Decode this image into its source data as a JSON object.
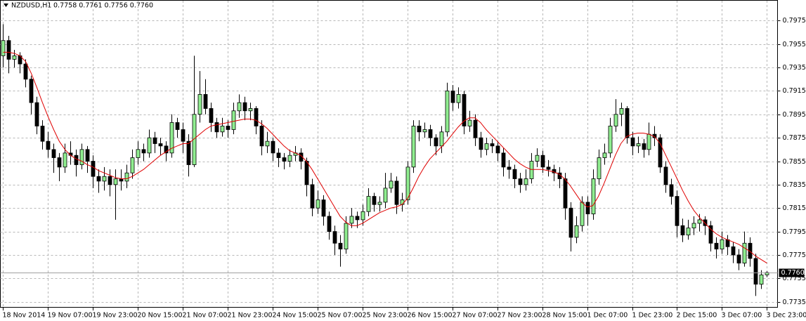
{
  "chart_data": {
    "type": "candlestick",
    "symbol": "NZDUSD,H1",
    "header_ohlc": "0.7758 0.7761 0.7756 0.7760",
    "bull_color": "#90ee90",
    "bear_color": "#000000",
    "grid": true,
    "ylim": [
      0.773,
      0.7992
    ],
    "yticks": [
      0.7975,
      0.7955,
      0.7935,
      0.7915,
      0.7895,
      0.7875,
      0.7855,
      0.7835,
      0.7815,
      0.7795,
      0.7775,
      0.7755,
      0.7735
    ],
    "xlim": [
      -0.5,
      137.9
    ],
    "xticks": [
      {
        "value": 0,
        "label": "18 Nov 2014"
      },
      {
        "value": 8,
        "label": "19 Nov 07:00"
      },
      {
        "value": 16,
        "label": "19 Nov 23:00"
      },
      {
        "value": 24,
        "label": "20 Nov 15:00"
      },
      {
        "value": 32,
        "label": "21 Nov 07:00"
      },
      {
        "value": 40,
        "label": "21 Nov 23:00"
      },
      {
        "value": 48,
        "label": "24 Nov 15:00"
      },
      {
        "value": 56,
        "label": "25 Nov 07:00"
      },
      {
        "value": 64,
        "label": "25 Nov 23:00"
      },
      {
        "value": 72,
        "label": "26 Nov 15:00"
      },
      {
        "value": 80,
        "label": "27 Nov 07:00"
      },
      {
        "value": 88,
        "label": "27 Nov 23:00"
      },
      {
        "value": 96,
        "label": "28 Nov 15:00"
      },
      {
        "value": 104,
        "label": "1 Dec 07:00"
      },
      {
        "value": 112,
        "label": "1 Dec 23:00"
      },
      {
        "value": 120,
        "label": "2 Dec 15:00"
      },
      {
        "value": 128,
        "label": "3 Dec 07:00"
      },
      {
        "value": 136,
        "label": "3 Dec 23:00"
      }
    ],
    "last_price": {
      "value": 0.776,
      "label": "0.7760"
    },
    "candles": [
      [
        0.7945,
        0.7972,
        0.7935,
        0.7958
      ],
      [
        0.7958,
        0.7962,
        0.793,
        0.7942
      ],
      [
        0.7942,
        0.795,
        0.7935,
        0.7945
      ],
      [
        0.7945,
        0.7948,
        0.793,
        0.7938
      ],
      [
        0.7938,
        0.7942,
        0.7918,
        0.7925
      ],
      [
        0.7925,
        0.7928,
        0.7895,
        0.7905
      ],
      [
        0.7905,
        0.791,
        0.7878,
        0.7885
      ],
      [
        0.7885,
        0.789,
        0.7865,
        0.7872
      ],
      [
        0.7872,
        0.788,
        0.7858,
        0.7865
      ],
      [
        0.7865,
        0.787,
        0.7845,
        0.7858
      ],
      [
        0.7858,
        0.7862,
        0.7838,
        0.785
      ],
      [
        0.785,
        0.787,
        0.7845,
        0.7862
      ],
      [
        0.7862,
        0.7872,
        0.7852,
        0.786
      ],
      [
        0.786,
        0.7865,
        0.7842,
        0.7852
      ],
      [
        0.7852,
        0.787,
        0.7848,
        0.7865
      ],
      [
        0.7865,
        0.7868,
        0.7845,
        0.7855
      ],
      [
        0.7855,
        0.786,
        0.7832,
        0.7842
      ],
      [
        0.7842,
        0.7848,
        0.7828,
        0.7838
      ],
      [
        0.7838,
        0.785,
        0.783,
        0.7842
      ],
      [
        0.7842,
        0.7848,
        0.7825,
        0.7835
      ],
      [
        0.7835,
        0.7848,
        0.7805,
        0.784
      ],
      [
        0.784,
        0.7848,
        0.783,
        0.7838
      ],
      [
        0.7838,
        0.7852,
        0.7832,
        0.7845
      ],
      [
        0.7845,
        0.7865,
        0.784,
        0.7858
      ],
      [
        0.7858,
        0.7872,
        0.7852,
        0.7865
      ],
      [
        0.7865,
        0.787,
        0.7855,
        0.7862
      ],
      [
        0.7862,
        0.7882,
        0.7858,
        0.7875
      ],
      [
        0.7875,
        0.788,
        0.7862,
        0.787
      ],
      [
        0.787,
        0.7875,
        0.786,
        0.7868
      ],
      [
        0.7868,
        0.7872,
        0.7855,
        0.7862
      ],
      [
        0.7862,
        0.7895,
        0.7858,
        0.7888
      ],
      [
        0.7888,
        0.7892,
        0.7875,
        0.7882
      ],
      [
        0.7882,
        0.7888,
        0.7862,
        0.7872
      ],
      [
        0.7872,
        0.7878,
        0.7842,
        0.7852
      ],
      [
        0.7852,
        0.7945,
        0.785,
        0.7895
      ],
      [
        0.7895,
        0.7932,
        0.7888,
        0.7912
      ],
      [
        0.7912,
        0.7925,
        0.7895,
        0.79
      ],
      [
        0.79,
        0.7905,
        0.788,
        0.7888
      ],
      [
        0.7888,
        0.7892,
        0.7875,
        0.788
      ],
      [
        0.788,
        0.7892,
        0.7876,
        0.7885
      ],
      [
        0.7885,
        0.789,
        0.7875,
        0.7882
      ],
      [
        0.7882,
        0.7905,
        0.7878,
        0.7898
      ],
      [
        0.7898,
        0.7912,
        0.7892,
        0.7905
      ],
      [
        0.7905,
        0.791,
        0.789,
        0.7898
      ],
      [
        0.7898,
        0.7905,
        0.789,
        0.79
      ],
      [
        0.79,
        0.7902,
        0.7878,
        0.7885
      ],
      [
        0.7885,
        0.789,
        0.786,
        0.7868
      ],
      [
        0.7868,
        0.788,
        0.7862,
        0.7872
      ],
      [
        0.7872,
        0.7875,
        0.7855,
        0.7862
      ],
      [
        0.7862,
        0.7866,
        0.785,
        0.7858
      ],
      [
        0.7858,
        0.7862,
        0.7848,
        0.7855
      ],
      [
        0.7855,
        0.7865,
        0.785,
        0.786
      ],
      [
        0.786,
        0.7868,
        0.7855,
        0.7862
      ],
      [
        0.7862,
        0.7866,
        0.7848,
        0.7855
      ],
      [
        0.7855,
        0.7858,
        0.7825,
        0.7835
      ],
      [
        0.7835,
        0.784,
        0.7808,
        0.7815
      ],
      [
        0.7815,
        0.783,
        0.781,
        0.7822
      ],
      [
        0.7822,
        0.7826,
        0.78,
        0.7808
      ],
      [
        0.7808,
        0.7812,
        0.7788,
        0.7795
      ],
      [
        0.7795,
        0.78,
        0.7775,
        0.7785
      ],
      [
        0.7785,
        0.7792,
        0.7765,
        0.778
      ],
      [
        0.778,
        0.7808,
        0.7776,
        0.7802
      ],
      [
        0.7802,
        0.7815,
        0.7798,
        0.7808
      ],
      [
        0.7808,
        0.7812,
        0.7798,
        0.7805
      ],
      [
        0.7805,
        0.7818,
        0.78,
        0.7812
      ],
      [
        0.7812,
        0.7832,
        0.7808,
        0.7825
      ],
      [
        0.7825,
        0.7828,
        0.7812,
        0.7818
      ],
      [
        0.7818,
        0.7825,
        0.7812,
        0.782
      ],
      [
        0.782,
        0.7845,
        0.7815,
        0.7832
      ],
      [
        0.7832,
        0.7845,
        0.7828,
        0.7838
      ],
      [
        0.7838,
        0.7842,
        0.781,
        0.7818
      ],
      [
        0.7818,
        0.7828,
        0.7812,
        0.7822
      ],
      [
        0.7822,
        0.7855,
        0.7818,
        0.785
      ],
      [
        0.785,
        0.789,
        0.7845,
        0.7885
      ],
      [
        0.7885,
        0.789,
        0.7872,
        0.788
      ],
      [
        0.788,
        0.7888,
        0.7875,
        0.7882
      ],
      [
        0.7882,
        0.7886,
        0.7868,
        0.7875
      ],
      [
        0.7875,
        0.7878,
        0.786,
        0.7868
      ],
      [
        0.7868,
        0.7885,
        0.7862,
        0.788
      ],
      [
        0.788,
        0.7922,
        0.7876,
        0.7915
      ],
      [
        0.7915,
        0.792,
        0.7898,
        0.7905
      ],
      [
        0.7905,
        0.7918,
        0.79,
        0.7912
      ],
      [
        0.7912,
        0.7915,
        0.7878,
        0.7885
      ],
      [
        0.7885,
        0.7898,
        0.788,
        0.789
      ],
      [
        0.789,
        0.7895,
        0.7868,
        0.7875
      ],
      [
        0.7875,
        0.788,
        0.7858,
        0.7865
      ],
      [
        0.7865,
        0.7875,
        0.786,
        0.787
      ],
      [
        0.787,
        0.7874,
        0.7862,
        0.7868
      ],
      [
        0.7868,
        0.7872,
        0.7855,
        0.7862
      ],
      [
        0.7862,
        0.7866,
        0.7842,
        0.785
      ],
      [
        0.785,
        0.7856,
        0.784,
        0.7848
      ],
      [
        0.7848,
        0.7852,
        0.7832,
        0.784
      ],
      [
        0.784,
        0.7845,
        0.7828,
        0.7835
      ],
      [
        0.7835,
        0.7848,
        0.783,
        0.784
      ],
      [
        0.784,
        0.7862,
        0.7836,
        0.7855
      ],
      [
        0.7855,
        0.7866,
        0.785,
        0.786
      ],
      [
        0.786,
        0.7864,
        0.7845,
        0.785
      ],
      [
        0.785,
        0.7856,
        0.7842,
        0.7848
      ],
      [
        0.7848,
        0.7852,
        0.7838,
        0.7845
      ],
      [
        0.7845,
        0.785,
        0.7832,
        0.784
      ],
      [
        0.784,
        0.7845,
        0.7805,
        0.7815
      ],
      [
        0.7815,
        0.782,
        0.7778,
        0.779
      ],
      [
        0.779,
        0.7808,
        0.7785,
        0.78
      ],
      [
        0.78,
        0.7825,
        0.7795,
        0.782
      ],
      [
        0.782,
        0.7825,
        0.78,
        0.781
      ],
      [
        0.781,
        0.7848,
        0.7805,
        0.784
      ],
      [
        0.784,
        0.7865,
        0.7835,
        0.7858
      ],
      [
        0.7858,
        0.787,
        0.7852,
        0.7862
      ],
      [
        0.7862,
        0.7892,
        0.7858,
        0.7885
      ],
      [
        0.7885,
        0.7908,
        0.788,
        0.7895
      ],
      [
        0.7895,
        0.7905,
        0.7885,
        0.79
      ],
      [
        0.79,
        0.7902,
        0.787,
        0.7875
      ],
      [
        0.7875,
        0.788,
        0.786,
        0.7868
      ],
      [
        0.7868,
        0.7876,
        0.7862,
        0.787
      ],
      [
        0.787,
        0.7874,
        0.7858,
        0.7865
      ],
      [
        0.7865,
        0.7888,
        0.786,
        0.7878
      ],
      [
        0.7878,
        0.7885,
        0.7868,
        0.7875
      ],
      [
        0.7875,
        0.7878,
        0.7845,
        0.785
      ],
      [
        0.785,
        0.7855,
        0.7828,
        0.7835
      ],
      [
        0.7835,
        0.784,
        0.7818,
        0.7825
      ],
      [
        0.7825,
        0.783,
        0.779,
        0.78
      ],
      [
        0.78,
        0.7806,
        0.7786,
        0.7792
      ],
      [
        0.7792,
        0.7805,
        0.7788,
        0.7798
      ],
      [
        0.7798,
        0.7808,
        0.7792,
        0.7802
      ],
      [
        0.7802,
        0.781,
        0.7795,
        0.7805
      ],
      [
        0.7805,
        0.7808,
        0.7792,
        0.78
      ],
      [
        0.78,
        0.7804,
        0.7778,
        0.7785
      ],
      [
        0.7785,
        0.779,
        0.7772,
        0.778
      ],
      [
        0.778,
        0.7795,
        0.7776,
        0.7788
      ],
      [
        0.7788,
        0.7792,
        0.7775,
        0.7782
      ],
      [
        0.7782,
        0.7786,
        0.7768,
        0.7775
      ],
      [
        0.7775,
        0.778,
        0.7762,
        0.7768
      ],
      [
        0.7768,
        0.7795,
        0.7765,
        0.7785
      ],
      [
        0.7785,
        0.779,
        0.7765,
        0.7772
      ],
      [
        0.7772,
        0.7776,
        0.774,
        0.775
      ],
      [
        0.775,
        0.7762,
        0.7746,
        0.7758
      ],
      [
        0.7758,
        0.7761,
        0.7756,
        0.776
      ]
    ],
    "ma": {
      "color": "#e00000",
      "values": [
        0.7948,
        0.7948,
        0.7947,
        0.7945,
        0.794,
        0.793,
        0.7918,
        0.7905,
        0.7893,
        0.7882,
        0.7872,
        0.7865,
        0.786,
        0.7857,
        0.7855,
        0.7852,
        0.785,
        0.7847,
        0.7845,
        0.7843,
        0.7841,
        0.784,
        0.784,
        0.7842,
        0.7845,
        0.7848,
        0.7852,
        0.7856,
        0.786,
        0.7863,
        0.7866,
        0.7868,
        0.787,
        0.787,
        0.7874,
        0.7878,
        0.7882,
        0.7885,
        0.7886,
        0.7887,
        0.7888,
        0.7889,
        0.789,
        0.7891,
        0.7891,
        0.789,
        0.7887,
        0.7883,
        0.7878,
        0.7873,
        0.7868,
        0.7864,
        0.7862,
        0.786,
        0.7855,
        0.7848,
        0.784,
        0.7832,
        0.7824,
        0.7816,
        0.7808,
        0.7803,
        0.78,
        0.78,
        0.7802,
        0.7805,
        0.7808,
        0.7811,
        0.7813,
        0.7815,
        0.7816,
        0.7818,
        0.7823,
        0.7832,
        0.7842,
        0.785,
        0.7857,
        0.7862,
        0.7867,
        0.7872,
        0.7878,
        0.7884,
        0.7889,
        0.7892,
        0.7892,
        0.7888,
        0.7882,
        0.7877,
        0.7872,
        0.7867,
        0.7862,
        0.7857,
        0.7853,
        0.785,
        0.7848,
        0.7848,
        0.7848,
        0.7847,
        0.7846,
        0.7844,
        0.784,
        0.7834,
        0.7827,
        0.782,
        0.7816,
        0.7817,
        0.7825,
        0.7836,
        0.7848,
        0.786,
        0.787,
        0.7876,
        0.7878,
        0.7879,
        0.7879,
        0.7878,
        0.7876,
        0.787,
        0.786,
        0.785,
        0.784,
        0.783,
        0.7821,
        0.7813,
        0.7807,
        0.7802,
        0.7797,
        0.7793,
        0.779,
        0.7788,
        0.7786,
        0.7784,
        0.7781,
        0.7778,
        0.7774,
        0.7771,
        0.7768
      ]
    }
  }
}
